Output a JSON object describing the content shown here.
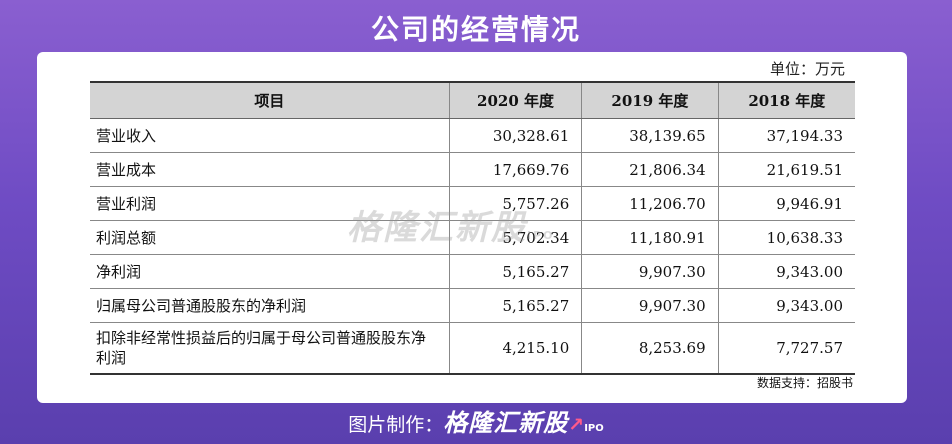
{
  "title": "公司的经营情况",
  "unit": "单位：万元",
  "table": {
    "headers": [
      "项目",
      "2020 年度",
      "2019 年度",
      "2018 年度"
    ],
    "rows": [
      {
        "item": "营业收入",
        "v2020": "30,328.61",
        "v2019": "38,139.65",
        "v2018": "37,194.33"
      },
      {
        "item": "营业成本",
        "v2020": "17,669.76",
        "v2019": "21,806.34",
        "v2018": "21,619.51"
      },
      {
        "item": "营业利润",
        "v2020": "5,757.26",
        "v2019": "11,206.70",
        "v2018": "9,946.91"
      },
      {
        "item": "利润总额",
        "v2020": "5,702.34",
        "v2019": "11,180.91",
        "v2018": "10,638.33"
      },
      {
        "item": "净利润",
        "v2020": "5,165.27",
        "v2019": "9,907.30",
        "v2018": "9,343.00"
      },
      {
        "item": "归属母公司普通股股东的净利润",
        "v2020": "5,165.27",
        "v2019": "9,907.30",
        "v2018": "9,343.00"
      },
      {
        "item": "扣除非经常性损益后的归属于母公司普通股股东净利润",
        "v2020": "4,215.10",
        "v2019": "8,253.69",
        "v2018": "7,727.57"
      }
    ]
  },
  "source": "数据支持：招股书",
  "watermark": {
    "brand": "格隆汇新股",
    "sub": "IPO"
  },
  "footer": {
    "prefix": "图片制作：",
    "brand": "格隆汇新股",
    "sub": "IPO"
  }
}
